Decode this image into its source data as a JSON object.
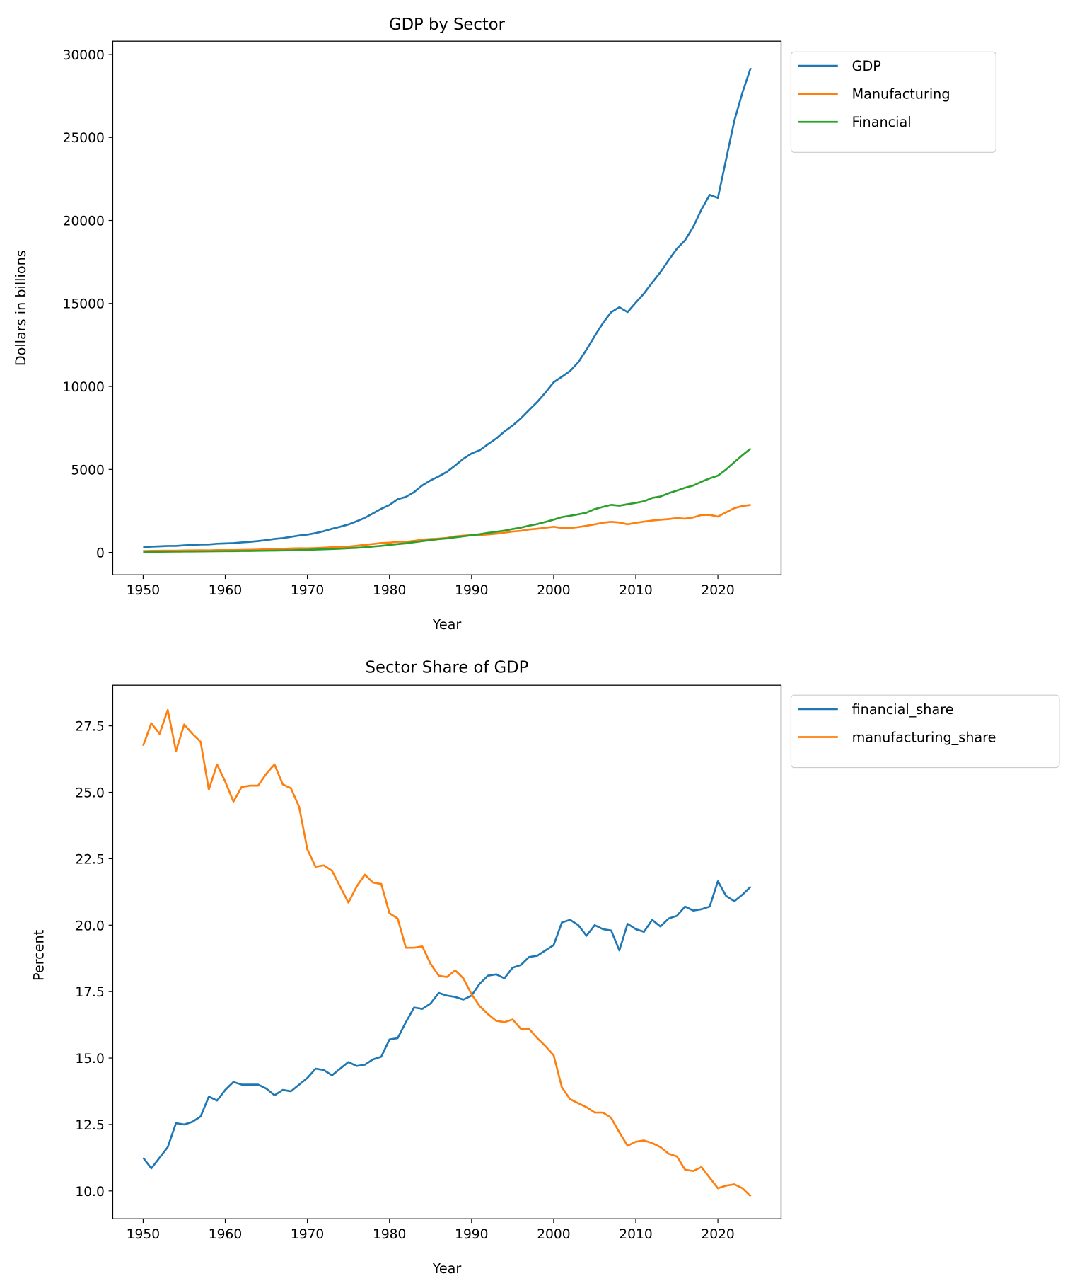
{
  "chart_data": [
    {
      "type": "line",
      "title": "GDP by Sector",
      "xlabel": "Year",
      "ylabel": "Dollars in billions",
      "xlim": [
        1946.3,
        2027.7
      ],
      "ylim": [
        -1350,
        30800
      ],
      "xticks": [
        "1950",
        "1960",
        "1970",
        "1980",
        "1990",
        "2000",
        "2010",
        "2020"
      ],
      "yticks": [
        "0",
        "5000",
        "10000",
        "15000",
        "20000",
        "25000",
        "30000"
      ],
      "grid": false,
      "legend_position": "outside-top-right",
      "x": [
        1950,
        1951,
        1952,
        1953,
        1954,
        1955,
        1956,
        1957,
        1958,
        1959,
        1960,
        1961,
        1962,
        1963,
        1964,
        1965,
        1966,
        1967,
        1968,
        1969,
        1970,
        1971,
        1972,
        1973,
        1974,
        1975,
        1976,
        1977,
        1978,
        1979,
        1980,
        1981,
        1982,
        1983,
        1984,
        1985,
        1986,
        1987,
        1988,
        1989,
        1990,
        1991,
        1992,
        1993,
        1994,
        1995,
        1996,
        1997,
        1998,
        1999,
        2000,
        2001,
        2002,
        2003,
        2004,
        2005,
        2006,
        2007,
        2008,
        2009,
        2010,
        2011,
        2012,
        2013,
        2014,
        2015,
        2016,
        2017,
        2018,
        2019,
        2020,
        2021,
        2022,
        2023,
        2024
      ],
      "series": [
        {
          "name": "GDP",
          "color": "#1f77b4",
          "values": [
            300,
            347,
            367,
            389,
            391,
            426,
            449,
            474,
            481,
            522,
            542,
            562,
            604,
            638,
            685,
            742,
            813,
            860,
            941,
            1018,
            1073,
            1165,
            1279,
            1425,
            1545,
            1685,
            1873,
            2082,
            2352,
            2627,
            2857,
            3207,
            3344,
            3634,
            4038,
            4339,
            4580,
            4855,
            5236,
            5642,
            5963,
            6158,
            6520,
            6859,
            7287,
            7640,
            8073,
            8578,
            9063,
            9631,
            10251,
            10582,
            10929,
            11457,
            12217,
            13039,
            13816,
            14474,
            14770,
            14478,
            15049,
            15600,
            16254,
            16881,
            17608,
            18295,
            18805,
            19612,
            20657,
            21540,
            21354,
            23681,
            26007,
            27721,
            29185
          ]
        },
        {
          "name": "Manufacturing",
          "color": "#ff7f0e",
          "values": [
            80,
            96,
            100,
            109,
            104,
            117,
            122,
            128,
            121,
            136,
            138,
            139,
            152,
            161,
            173,
            191,
            212,
            218,
            237,
            249,
            245,
            259,
            285,
            314,
            331,
            351,
            402,
            456,
            508,
            566,
            584,
            649,
            640,
            696,
            775,
            805,
            829,
            876,
            958,
            1015,
            1038,
            1044,
            1086,
            1125,
            1191,
            1257,
            1300,
            1381,
            1427,
            1488,
            1548,
            1471,
            1470,
            1524,
            1607,
            1689,
            1789,
            1845,
            1802,
            1694,
            1783,
            1856,
            1918,
            1967,
            2007,
            2067,
            2031,
            2108,
            2252,
            2262,
            2157,
            2415,
            2666,
            2800,
            2860
          ]
        },
        {
          "name": "Financial",
          "color": "#2ca02c",
          "values": [
            34,
            38,
            41,
            45,
            49,
            53,
            57,
            61,
            65,
            70,
            75,
            79,
            85,
            89,
            96,
            103,
            111,
            119,
            129,
            142,
            153,
            170,
            186,
            205,
            226,
            250,
            275,
            307,
            352,
            395,
            449,
            505,
            547,
            614,
            680,
            740,
            799,
            842,
            906,
            970,
            1035,
            1096,
            1180,
            1245,
            1312,
            1406,
            1494,
            1613,
            1708,
            1835,
            1973,
            2127,
            2208,
            2291,
            2395,
            2608,
            2742,
            2866,
            2814,
            2903,
            2987,
            3081,
            3283,
            3368,
            3566,
            3723,
            3893,
            4030,
            4255,
            4459,
            4623,
            4997,
            5435,
            5863,
            6260
          ]
        }
      ]
    },
    {
      "type": "line",
      "title": "Sector Share of GDP",
      "xlabel": "Year",
      "ylabel": "Percent",
      "xlim": [
        1946.3,
        2027.7
      ],
      "ylim": [
        8.95,
        29.03
      ],
      "xticks": [
        "1950",
        "1960",
        "1970",
        "1980",
        "1990",
        "2000",
        "2010",
        "2020"
      ],
      "yticks": [
        "10.0",
        "12.5",
        "15.0",
        "17.5",
        "20.0",
        "22.5",
        "25.0",
        "27.5"
      ],
      "grid": false,
      "legend_position": "outside-top-right",
      "x": [
        1950,
        1951,
        1952,
        1953,
        1954,
        1955,
        1956,
        1957,
        1958,
        1959,
        1960,
        1961,
        1962,
        1963,
        1964,
        1965,
        1966,
        1967,
        1968,
        1969,
        1970,
        1971,
        1972,
        1973,
        1974,
        1975,
        1976,
        1977,
        1978,
        1979,
        1980,
        1981,
        1982,
        1983,
        1984,
        1985,
        1986,
        1987,
        1988,
        1989,
        1990,
        1991,
        1992,
        1993,
        1994,
        1995,
        1996,
        1997,
        1998,
        1999,
        2000,
        2001,
        2002,
        2003,
        2004,
        2005,
        2006,
        2007,
        2008,
        2009,
        2010,
        2011,
        2012,
        2013,
        2014,
        2015,
        2016,
        2017,
        2018,
        2019,
        2020,
        2021,
        2022,
        2023,
        2024
      ],
      "series": [
        {
          "name": "financial_share",
          "color": "#1f77b4",
          "values": [
            11.25,
            10.85,
            11.25,
            11.65,
            12.55,
            12.5,
            12.6,
            12.8,
            13.55,
            13.4,
            13.8,
            14.1,
            14.0,
            14.0,
            14.0,
            13.85,
            13.6,
            13.8,
            13.75,
            14.0,
            14.25,
            14.6,
            14.55,
            14.35,
            14.6,
            14.85,
            14.7,
            14.75,
            14.95,
            15.05,
            15.7,
            15.75,
            16.35,
            16.9,
            16.85,
            17.05,
            17.45,
            17.35,
            17.3,
            17.2,
            17.35,
            17.8,
            18.1,
            18.15,
            18.0,
            18.4,
            18.5,
            18.8,
            18.85,
            19.05,
            19.25,
            20.1,
            20.2,
            20.0,
            19.6,
            20.0,
            19.85,
            19.8,
            19.05,
            20.05,
            19.85,
            19.75,
            20.2,
            19.95,
            20.25,
            20.35,
            20.7,
            20.55,
            20.6,
            20.7,
            21.65,
            21.1,
            20.9,
            21.15,
            21.45
          ]
        },
        {
          "name": "manufacturing_share",
          "color": "#ff7f0e",
          "values": [
            26.75,
            27.6,
            27.2,
            28.1,
            26.55,
            27.55,
            27.2,
            26.9,
            25.1,
            26.05,
            25.4,
            24.65,
            25.2,
            25.25,
            25.25,
            25.7,
            26.05,
            25.3,
            25.15,
            24.45,
            22.85,
            22.2,
            22.25,
            22.05,
            21.45,
            20.85,
            21.45,
            21.9,
            21.6,
            21.55,
            20.45,
            20.25,
            19.15,
            19.15,
            19.2,
            18.55,
            18.1,
            18.05,
            18.3,
            18.0,
            17.4,
            16.95,
            16.65,
            16.4,
            16.35,
            16.45,
            16.1,
            16.1,
            15.75,
            15.45,
            15.1,
            13.9,
            13.45,
            13.3,
            13.15,
            12.95,
            12.95,
            12.75,
            12.2,
            11.7,
            11.85,
            11.9,
            11.8,
            11.65,
            11.4,
            11.3,
            10.8,
            10.75,
            10.9,
            10.5,
            10.1,
            10.2,
            10.25,
            10.1,
            9.8
          ]
        }
      ]
    }
  ]
}
